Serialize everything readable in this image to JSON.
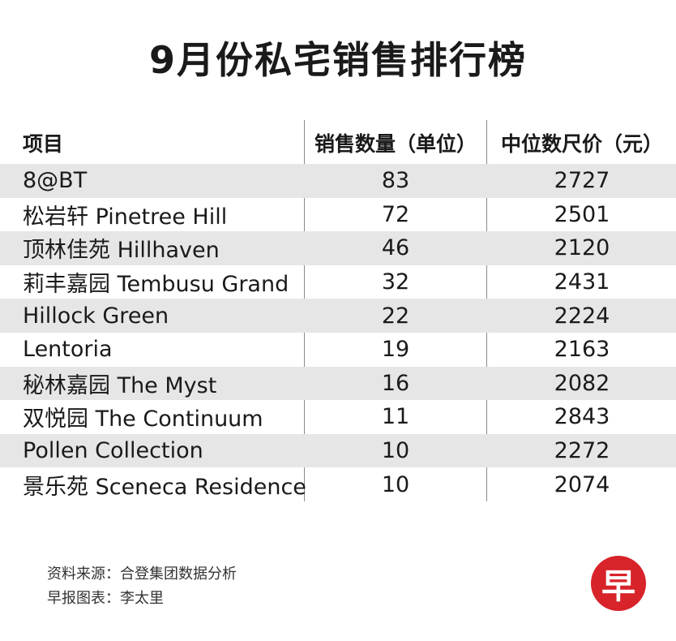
{
  "title": "9月份私宅销售排行榜",
  "table": {
    "headers": [
      "项目",
      "销售数量（单位）",
      "中位数尺价（元）"
    ],
    "rows": [
      {
        "project": "8@BT",
        "units": "83",
        "median_psf": "2727"
      },
      {
        "project": "松岩轩 Pinetree Hill",
        "units": "72",
        "median_psf": "2501"
      },
      {
        "project": "顶林佳苑 Hillhaven",
        "units": "46",
        "median_psf": "2120"
      },
      {
        "project": "莉丰嘉园 Tembusu Grand",
        "units": "32",
        "median_psf": "2431"
      },
      {
        "project": "Hillock Green",
        "units": "22",
        "median_psf": "2224"
      },
      {
        "project": "Lentoria",
        "units": "19",
        "median_psf": "2163"
      },
      {
        "project": "秘林嘉园 The Myst",
        "units": "16",
        "median_psf": "2082"
      },
      {
        "project": "双悦园 The Continuum",
        "units": "11",
        "median_psf": "2843"
      },
      {
        "project": "Pollen Collection",
        "units": "10",
        "median_psf": "2272"
      },
      {
        "project": "景乐苑 Sceneca Residence",
        "units": "10",
        "median_psf": "2074"
      }
    ]
  },
  "footer": {
    "source": "资料来源：合登集团数据分析",
    "credit": "早报图表：李太里"
  },
  "logo": {
    "glyph": "早",
    "color": "#d8232a"
  }
}
